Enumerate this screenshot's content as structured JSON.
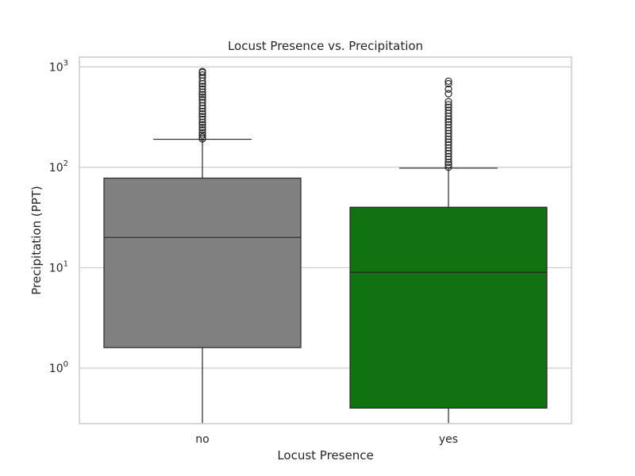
{
  "chart_data": {
    "type": "box",
    "title": "Locust Presence vs. Precipitation",
    "xlabel": "Locust Presence",
    "ylabel": "Precipitation (PPT)",
    "yscale": "log",
    "ylim": [
      0.28,
      1250
    ],
    "yticks": [
      {
        "value": 1,
        "base": "10",
        "exp": "0"
      },
      {
        "value": 10,
        "base": "10",
        "exp": "1"
      },
      {
        "value": 100,
        "base": "10",
        "exp": "2"
      },
      {
        "value": 1000,
        "base": "10",
        "exp": "3"
      }
    ],
    "grid": true,
    "categories": [
      "no",
      "yes"
    ],
    "boxes": [
      {
        "category": "no",
        "color": "#808080",
        "q1": 1.6,
        "median": 20,
        "q3": 78,
        "whisker_low": 0.28,
        "whisker_high": 190,
        "outliers": [
          192,
          200,
          210,
          220,
          235,
          250,
          265,
          280,
          300,
          320,
          340,
          360,
          385,
          410,
          440,
          470,
          500,
          530,
          560,
          600,
          640,
          680,
          720,
          780,
          830,
          880,
          900
        ]
      },
      {
        "category": "yes",
        "color": "#117211",
        "q1": 0.4,
        "median": 9,
        "q3": 40,
        "whisker_low": 0.28,
        "whisker_high": 98,
        "outliers": [
          100,
          106,
          112,
          120,
          128,
          137,
          146,
          156,
          167,
          178,
          190,
          203,
          217,
          232,
          248,
          265,
          283,
          302,
          322,
          345,
          370,
          395,
          420,
          450,
          540,
          600,
          680,
          720
        ]
      }
    ]
  }
}
